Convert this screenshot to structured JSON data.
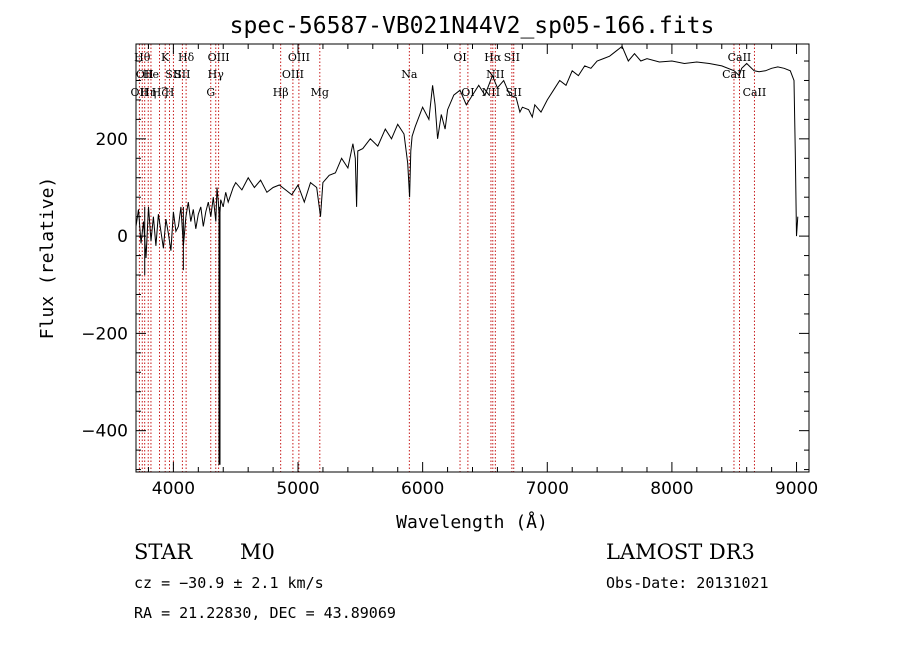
{
  "chart_data": {
    "type": "line",
    "title": "spec-56587-VB021N44V2_sp05-166.fits",
    "xlabel": "Wavelength (Å)",
    "ylabel": "Flux (relative)",
    "xlim": [
      3700,
      9100
    ],
    "ylim": [
      -485,
      395
    ],
    "xticks": [
      4000,
      5000,
      6000,
      7000,
      8000,
      9000
    ],
    "yticks": [
      -400,
      -200,
      0,
      200
    ],
    "series": [
      {
        "name": "flux",
        "x": [
          3700,
          3720,
          3740,
          3760,
          3780,
          3800,
          3820,
          3840,
          3860,
          3880,
          3900,
          3920,
          3940,
          3960,
          3980,
          4000,
          4020,
          4040,
          4060,
          4080,
          4100,
          4120,
          4140,
          4160,
          4180,
          4200,
          4220,
          4240,
          4260,
          4280,
          4300,
          4320,
          4340,
          4350,
          4360,
          4370,
          4380,
          4400,
          4420,
          4440,
          4460,
          4480,
          4500,
          4550,
          4600,
          4650,
          4700,
          4750,
          4800,
          4850,
          4900,
          4950,
          5000,
          5050,
          5100,
          5150,
          5180,
          5200,
          5250,
          5300,
          5350,
          5400,
          5440,
          5460,
          5470,
          5480,
          5520,
          5580,
          5640,
          5700,
          5750,
          5800,
          5850,
          5880,
          5895,
          5905,
          5915,
          5940,
          6000,
          6050,
          6080,
          6100,
          6120,
          6150,
          6180,
          6200,
          6250,
          6300,
          6350,
          6400,
          6450,
          6500,
          6560,
          6600,
          6650,
          6700,
          6750,
          6780,
          6800,
          6850,
          6880,
          6900,
          6950,
          7000,
          7050,
          7100,
          7150,
          7200,
          7250,
          7300,
          7350,
          7400,
          7450,
          7500,
          7550,
          7600,
          7650,
          7700,
          7750,
          7800,
          7900,
          8000,
          8100,
          8200,
          8300,
          8400,
          8500,
          8540,
          8560,
          8600,
          8660,
          8700,
          8750,
          8800,
          8850,
          8900,
          8950,
          8980,
          8990,
          9000,
          9010
        ],
        "values": [
          20,
          55,
          -15,
          30,
          -45,
          60,
          -10,
          40,
          -20,
          45,
          10,
          -25,
          35,
          5,
          -30,
          50,
          10,
          20,
          60,
          -20,
          40,
          70,
          30,
          55,
          15,
          45,
          60,
          20,
          50,
          70,
          40,
          80,
          30,
          100,
          70,
          30,
          75,
          60,
          90,
          70,
          85,
          100,
          110,
          95,
          120,
          100,
          115,
          90,
          100,
          105,
          95,
          85,
          105,
          70,
          110,
          100,
          40,
          110,
          125,
          130,
          160,
          140,
          190,
          160,
          60,
          175,
          180,
          200,
          185,
          220,
          200,
          230,
          210,
          150,
          80,
          175,
          205,
          225,
          265,
          240,
          310,
          270,
          200,
          250,
          220,
          260,
          290,
          300,
          270,
          290,
          310,
          290,
          330,
          305,
          320,
          290,
          285,
          255,
          265,
          260,
          245,
          270,
          255,
          280,
          300,
          320,
          310,
          340,
          330,
          350,
          345,
          360,
          365,
          370,
          380,
          390,
          360,
          375,
          360,
          365,
          358,
          360,
          355,
          358,
          355,
          350,
          340,
          330,
          345,
          355,
          340,
          338,
          340,
          345,
          348,
          345,
          340,
          320,
          170,
          0,
          40
        ]
      }
    ],
    "drops": [
      {
        "x": 4370,
        "value": -470
      },
      {
        "x": 3770,
        "value": -80
      },
      {
        "x": 4080,
        "value": -70
      }
    ],
    "line_markers": [
      {
        "wavelength": 3727,
        "label": "OII",
        "row": 3
      },
      {
        "wavelength": 3750,
        "label": "Hθ",
        "row": 1
      },
      {
        "wavelength": 3770,
        "label": "OII",
        "row": 2
      },
      {
        "wavelength": 3798,
        "label": "Hη",
        "row": 3
      },
      {
        "wavelength": 3820,
        "label": "He",
        "row": 2
      },
      {
        "wavelength": 3889,
        "label": "Hζ",
        "row": 3
      },
      {
        "wavelength": 3934,
        "label": "K",
        "row": 1
      },
      {
        "wavelength": 3969,
        "label": "H",
        "row": 3
      },
      {
        "wavelength": 4000,
        "label": "SII",
        "row": 2
      },
      {
        "wavelength": 4072,
        "label": "SII",
        "row": 2
      },
      {
        "wavelength": 4102,
        "label": "Hδ",
        "row": 1
      },
      {
        "wavelength": 4300,
        "label": "G",
        "row": 3
      },
      {
        "wavelength": 4340,
        "label": "Hγ",
        "row": 2
      },
      {
        "wavelength": 4363,
        "label": "OIII",
        "row": 1
      },
      {
        "wavelength": 4861,
        "label": "Hβ",
        "row": 3
      },
      {
        "wavelength": 4959,
        "label": "OIII",
        "row": 2
      },
      {
        "wavelength": 5007,
        "label": "OIII",
        "row": 1
      },
      {
        "wavelength": 5175,
        "label": "Mg",
        "row": 3
      },
      {
        "wavelength": 5893,
        "label": "Na",
        "row": 2
      },
      {
        "wavelength": 6300,
        "label": "OI",
        "row": 1
      },
      {
        "wavelength": 6363,
        "label": "OI",
        "row": 3
      },
      {
        "wavelength": 6548,
        "label": "NII",
        "row": 3
      },
      {
        "wavelength": 6563,
        "label": "Hα",
        "row": 1
      },
      {
        "wavelength": 6583,
        "label": "NII",
        "row": 2
      },
      {
        "wavelength": 6716,
        "label": "SII",
        "row": 1
      },
      {
        "wavelength": 6731,
        "label": "SII",
        "row": 3
      },
      {
        "wavelength": 8498,
        "label": "CaII",
        "row": 2
      },
      {
        "wavelength": 8542,
        "label": "CaII",
        "row": 1
      },
      {
        "wavelength": 8662,
        "label": "CaII",
        "row": 3
      }
    ]
  },
  "info": {
    "object_class": "STAR",
    "subclass": "M0",
    "survey": "LAMOST DR3",
    "redshift_line": "cz = −30.9 ± 2.1 km/s",
    "obs_date_line": "Obs-Date: 20131021",
    "coords_line": "RA =  21.22830, DEC =  43.89069"
  },
  "colors": {
    "line": "#000000",
    "marker": "#c00000",
    "axis": "#000000"
  }
}
